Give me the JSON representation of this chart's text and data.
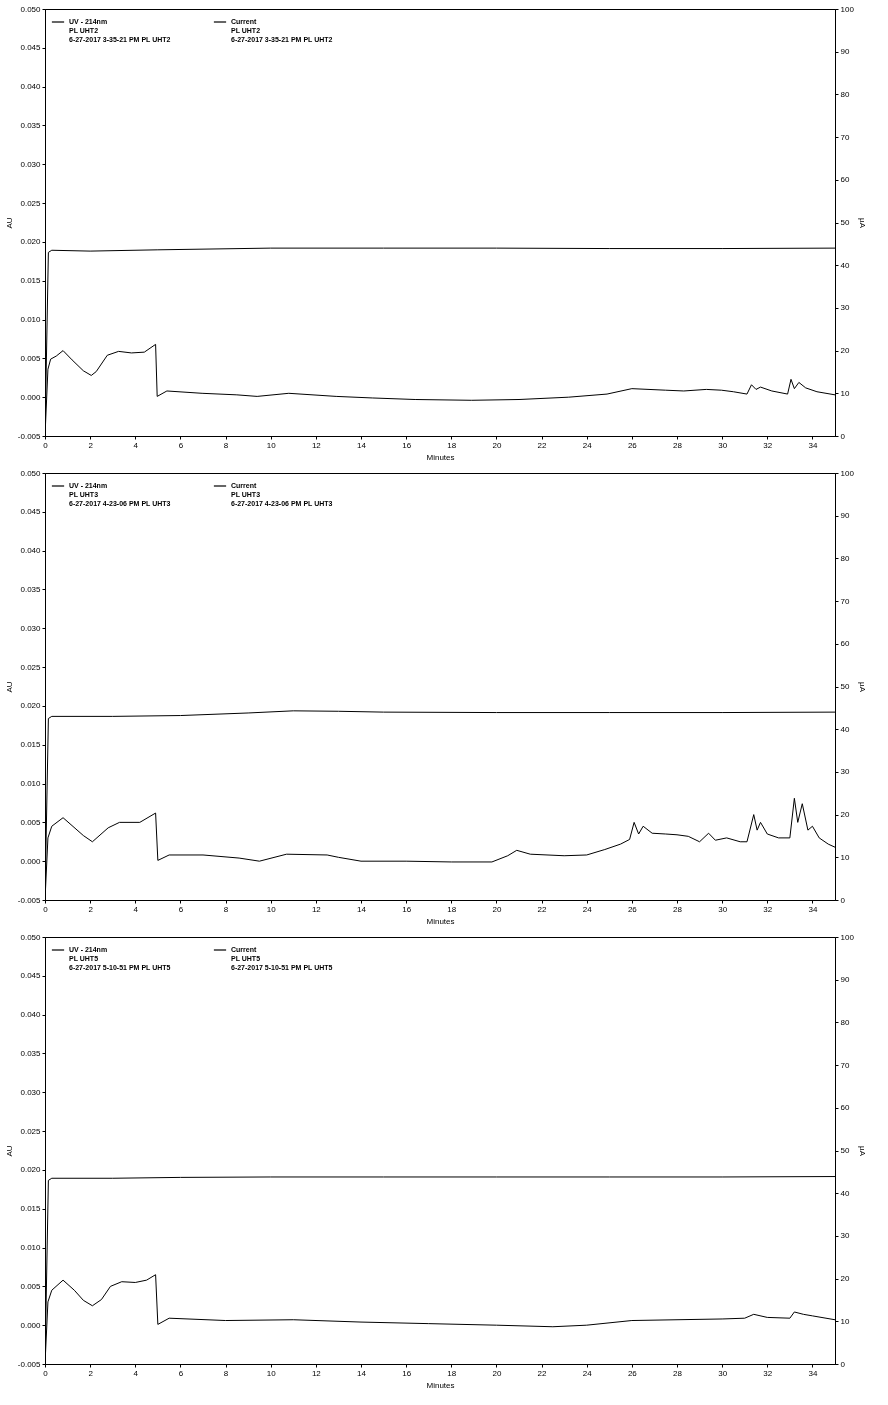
{
  "chart_data": [
    {
      "type": "line",
      "xlabel": "Minutes",
      "ylabel": "AU",
      "y2label": "µA",
      "legend": "top left",
      "xlim": [
        0,
        35
      ],
      "xticks": [
        0,
        2,
        4,
        6,
        8,
        10,
        12,
        14,
        16,
        18,
        20,
        22,
        24,
        26,
        28,
        30,
        32,
        34
      ],
      "ylim": [
        -0.005,
        0.05
      ],
      "yticks": [
        {
          "value": -0.005,
          "label": "-0.005"
        },
        {
          "value": 0,
          "label": "0.000"
        },
        {
          "value": 0.005,
          "label": "0.005"
        },
        {
          "value": 0.01,
          "label": "0.010"
        },
        {
          "value": 0.015,
          "label": "0.015"
        },
        {
          "value": 0.02,
          "label": "0.020"
        },
        {
          "value": 0.025,
          "label": "0.025"
        },
        {
          "value": 0.03,
          "label": "0.030"
        },
        {
          "value": 0.035,
          "label": "0.035"
        },
        {
          "value": 0.04,
          "label": "0.040"
        },
        {
          "value": 0.045,
          "label": "0.045"
        },
        {
          "value": 0.05,
          "label": "0.050"
        }
      ],
      "y2lim": [
        0,
        100
      ],
      "y2ticks": [
        0,
        10,
        20,
        30,
        40,
        50,
        60,
        70,
        80,
        90,
        100
      ],
      "series": [
        {
          "name": "UV - 214nm\nPL UHT2\n6-27-2017 3-35-21 PM PL UHT2",
          "color": "#000000",
          "x": [
            0,
            0.13,
            0.25,
            0.5,
            0.8,
            1.2,
            1.7,
            2.05,
            2.27,
            2.76,
            3.26,
            3.83,
            4.4,
            4.9,
            4.97,
            5.4,
            6.96,
            8.5,
            9.4,
            10.8,
            12.9,
            14.5,
            16.4,
            18.9,
            21,
            23.2,
            24.9,
            26,
            27.5,
            28.3,
            29.3,
            29.97,
            30.5,
            31.1,
            31.3,
            31.5,
            31.7,
            32.2,
            32.9,
            33.05,
            33.2,
            33.4,
            33.7,
            34.2,
            35
          ],
          "values": [
            -0.005,
            0.0036,
            0.0049,
            0.0053,
            0.006,
            0.0048,
            0.0034,
            0.0028,
            0.0033,
            0.0054,
            0.0059,
            0.0057,
            0.0058,
            0.0068,
            0.0001,
            0.0008,
            0.0005,
            0.0003,
            0.0001,
            0.0005,
            0.0001,
            -0.0001,
            -0.0003,
            -0.0004,
            -0.0003,
            0,
            0.0004,
            0.0011,
            0.0009,
            0.0008,
            0.001,
            0.0009,
            0.0007,
            0.0004,
            0.0016,
            0.001,
            0.0013,
            0.0008,
            0.0004,
            0.0023,
            0.0011,
            0.0019,
            0.0012,
            0.0007,
            0.0003
          ]
        },
        {
          "name": "Current\nPL UHT2\n6-27-2017 3-35-21 PM PL UHT2",
          "color": "#000000",
          "axis": "y2",
          "x": [
            0,
            0.15,
            0.3,
            2,
            5,
            10,
            15,
            20,
            25,
            30,
            35
          ],
          "values": [
            0,
            43,
            43.5,
            43.3,
            43.6,
            44,
            44,
            44,
            43.9,
            43.9,
            44
          ]
        }
      ]
    },
    {
      "type": "line",
      "xlabel": "Minutes",
      "ylabel": "AU",
      "y2label": "µA",
      "legend": "top left",
      "xlim": [
        0,
        35
      ],
      "xticks": [
        0,
        2,
        4,
        6,
        8,
        10,
        12,
        14,
        16,
        18,
        20,
        22,
        24,
        26,
        28,
        30,
        32,
        34
      ],
      "ylim": [
        -0.005,
        0.05
      ],
      "yticks": [
        {
          "value": -0.005,
          "label": "-0.005"
        },
        {
          "value": 0,
          "label": "0.000"
        },
        {
          "value": 0.005,
          "label": "0.005"
        },
        {
          "value": 0.01,
          "label": "0.010"
        },
        {
          "value": 0.015,
          "label": "0.015"
        },
        {
          "value": 0.02,
          "label": "0.020"
        },
        {
          "value": 0.025,
          "label": "0.025"
        },
        {
          "value": 0.03,
          "label": "0.030"
        },
        {
          "value": 0.035,
          "label": "0.035"
        },
        {
          "value": 0.04,
          "label": "0.040"
        },
        {
          "value": 0.045,
          "label": "0.045"
        },
        {
          "value": 0.05,
          "label": "0.050"
        }
      ],
      "y2lim": [
        0,
        100
      ],
      "y2ticks": [
        0,
        10,
        20,
        30,
        40,
        50,
        60,
        70,
        80,
        90,
        100
      ],
      "series": [
        {
          "name": "UV - 214nm\nPL UHT3\n6-27-2017 4-23-06 PM PL UHT3",
          "color": "#000000",
          "x": [
            0,
            0.13,
            0.3,
            0.8,
            1.7,
            2.1,
            2.8,
            3.3,
            4.2,
            4.9,
            5.0,
            5.5,
            7,
            8.6,
            9.5,
            10.7,
            12.5,
            13,
            14,
            16,
            18,
            19.8,
            20.5,
            20.9,
            21.5,
            23,
            24,
            24.8,
            25.5,
            25.9,
            26.1,
            26.3,
            26.5,
            26.9,
            27.5,
            28,
            28.5,
            29,
            29.4,
            29.7,
            30.2,
            30.8,
            31.1,
            31.4,
            31.55,
            31.7,
            32,
            32.5,
            33,
            33.2,
            33.35,
            33.55,
            33.8,
            34,
            34.3,
            34.7,
            35
          ],
          "values": [
            -0.005,
            0.003,
            0.0045,
            0.0056,
            0.0033,
            0.0025,
            0.0043,
            0.005,
            0.005,
            0.0062,
            0.0001,
            0.0008,
            0.0008,
            0.0004,
            0,
            0.0009,
            0.0008,
            0.0005,
            0,
            0,
            -0.0001,
            -0.0001,
            0.0007,
            0.0014,
            0.0009,
            0.0007,
            0.0008,
            0.0015,
            0.0022,
            0.0028,
            0.005,
            0.0035,
            0.0045,
            0.0036,
            0.0035,
            0.0034,
            0.0032,
            0.0025,
            0.0036,
            0.0027,
            0.003,
            0.0025,
            0.0025,
            0.006,
            0.004,
            0.005,
            0.0035,
            0.003,
            0.003,
            0.0081,
            0.005,
            0.0074,
            0.004,
            0.0045,
            0.003,
            0.0022,
            0.0018
          ]
        },
        {
          "name": "Current\nPL UHT3\n6-27-2017 4-23-06 PM PL UHT3",
          "color": "#000000",
          "axis": "y2",
          "x": [
            0,
            0.15,
            0.3,
            3,
            6,
            9,
            11,
            13,
            15,
            20,
            25,
            30,
            35
          ],
          "values": [
            0,
            42.5,
            43,
            43,
            43.2,
            43.8,
            44.3,
            44.2,
            44,
            43.9,
            43.9,
            43.9,
            44
          ]
        }
      ]
    },
    {
      "type": "line",
      "xlabel": "Minutes",
      "ylabel": "AU",
      "y2label": "µA",
      "legend": "top left",
      "xlim": [
        0,
        35
      ],
      "xticks": [
        0,
        2,
        4,
        6,
        8,
        10,
        12,
        14,
        16,
        18,
        20,
        22,
        24,
        26,
        28,
        30,
        32,
        34
      ],
      "ylim": [
        -0.005,
        0.05
      ],
      "yticks": [
        {
          "value": -0.005,
          "label": "-0.005"
        },
        {
          "value": 0,
          "label": "0.000"
        },
        {
          "value": 0.005,
          "label": "0.005"
        },
        {
          "value": 0.01,
          "label": "0.010"
        },
        {
          "value": 0.015,
          "label": "0.015"
        },
        {
          "value": 0.02,
          "label": "0.020"
        },
        {
          "value": 0.025,
          "label": "0.025"
        },
        {
          "value": 0.03,
          "label": "0.030"
        },
        {
          "value": 0.035,
          "label": "0.035"
        },
        {
          "value": 0.04,
          "label": "0.040"
        },
        {
          "value": 0.045,
          "label": "0.045"
        },
        {
          "value": 0.05,
          "label": "0.050"
        }
      ],
      "y2lim": [
        0,
        100
      ],
      "y2ticks": [
        0,
        10,
        20,
        30,
        40,
        50,
        60,
        70,
        80,
        90,
        100
      ],
      "series": [
        {
          "name": "UV - 214nm\nPL UHT5\n6-27-2017 5-10-51 PM PL UHT5",
          "color": "#000000",
          "x": [
            0,
            0.13,
            0.3,
            0.8,
            1.3,
            1.7,
            2.1,
            2.5,
            2.9,
            3.4,
            4,
            4.5,
            4.9,
            5.0,
            5.5,
            8,
            11,
            14,
            17,
            20,
            22.5,
            24,
            26,
            28,
            30,
            31,
            31.4,
            32,
            33,
            33.2,
            33.6,
            34,
            35
          ],
          "values": [
            -0.005,
            0.003,
            0.0045,
            0.0058,
            0.0045,
            0.0032,
            0.0025,
            0.0033,
            0.005,
            0.0056,
            0.0055,
            0.0058,
            0.0065,
            0.0001,
            0.0009,
            0.0006,
            0.0007,
            0.0004,
            0.0002,
            0,
            -0.0002,
            0,
            0.0006,
            0.0007,
            0.0008,
            0.0009,
            0.0014,
            0.001,
            0.0009,
            0.0017,
            0.0014,
            0.0012,
            0.0007
          ]
        },
        {
          "name": "Current\nPL UHT5\n6-27-2017 5-10-51 PM PL UHT5",
          "color": "#000000",
          "axis": "y2",
          "x": [
            0,
            0.15,
            0.3,
            3,
            6,
            10,
            15,
            20,
            25,
            30,
            35
          ],
          "values": [
            0,
            43,
            43.5,
            43.5,
            43.7,
            43.8,
            43.8,
            43.8,
            43.8,
            43.8,
            43.9
          ]
        }
      ]
    }
  ]
}
